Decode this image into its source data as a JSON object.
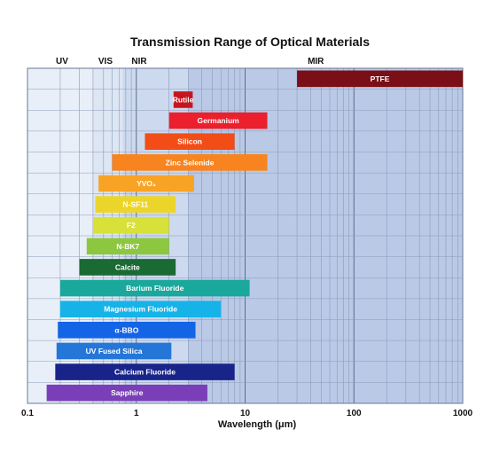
{
  "chart_data": {
    "type": "bar",
    "orientation": "horizontal-range",
    "title": "Transmission Range of Optical Materials",
    "xlabel": "Wavelength (μm)",
    "ylabel": "",
    "x_scale": "log",
    "xlim": [
      0.1,
      1000
    ],
    "x_ticks": [
      "0.1",
      "1",
      "10",
      "100",
      "1000"
    ],
    "regions": [
      {
        "label": "UV",
        "range": [
          0.1,
          0.4
        ],
        "shade": "#e8eff8"
      },
      {
        "label": "VIS",
        "range": [
          0.4,
          0.75
        ],
        "shade": "#dde6f3"
      },
      {
        "label": "NIR",
        "range": [
          0.75,
          3
        ],
        "shade": "#cdd9ee"
      },
      {
        "label": "MIR",
        "range": [
          3,
          1000
        ],
        "shade": "#b9c9e6"
      }
    ],
    "series": [
      {
        "material": "PTFE",
        "min": 30,
        "max": 1000,
        "color": "#7a0f17"
      },
      {
        "material": "Rutile",
        "min": 2.2,
        "max": 3.3,
        "color": "#c8141e"
      },
      {
        "material": "Germanium",
        "min": 2,
        "max": 16,
        "color": "#ec1f2d"
      },
      {
        "material": "Silicon",
        "min": 1.2,
        "max": 8,
        "color": "#f24d16"
      },
      {
        "material": "Zinc Selenide",
        "min": 0.6,
        "max": 16,
        "color": "#f7841e"
      },
      {
        "material": "YVO₄",
        "min": 0.45,
        "max": 3.4,
        "color": "#f8a324"
      },
      {
        "material": "N-SF11",
        "min": 0.42,
        "max": 2.3,
        "color": "#ecd52a"
      },
      {
        "material": "F2",
        "min": 0.4,
        "max": 2.0,
        "color": "#d8e03a"
      },
      {
        "material": "N-BK7",
        "min": 0.35,
        "max": 2.0,
        "color": "#8dc740"
      },
      {
        "material": "Calcite",
        "min": 0.3,
        "max": 2.3,
        "color": "#1a6a33"
      },
      {
        "material": "Barium Fluoride",
        "min": 0.2,
        "max": 11,
        "color": "#19a89b"
      },
      {
        "material": "Magnesium Fluoride",
        "min": 0.2,
        "max": 6,
        "color": "#16b3e8"
      },
      {
        "material": "α-BBO",
        "min": 0.19,
        "max": 3.5,
        "color": "#1464e6"
      },
      {
        "material": "UV Fused Silica",
        "min": 0.185,
        "max": 2.1,
        "color": "#2476d8"
      },
      {
        "material": "Calcium Fluoride",
        "min": 0.18,
        "max": 8,
        "color": "#19248a"
      },
      {
        "material": "Sapphire",
        "min": 0.15,
        "max": 4.5,
        "color": "#7a3fb8"
      }
    ],
    "grid": true,
    "legend": "none"
  }
}
